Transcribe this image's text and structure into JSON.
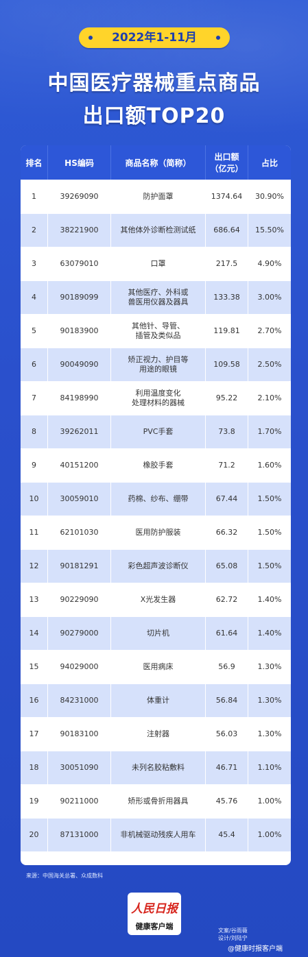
{
  "header": {
    "date_label": "2022年1-11月",
    "title_line1": "中国医疗器械重点商品",
    "title_line2": "出口额TOP20"
  },
  "table": {
    "columns": [
      "排名",
      "HS编码",
      "商品名称（简称）",
      "出口额\n（亿元）",
      "占比"
    ],
    "rows": [
      {
        "rank": "1",
        "code": "39269090",
        "name": "防护面罩",
        "amount": "1374.64",
        "share": "30.90%"
      },
      {
        "rank": "2",
        "code": "38221900",
        "name": "其他体外诊断检测试纸",
        "amount": "686.64",
        "share": "15.50%"
      },
      {
        "rank": "3",
        "code": "63079010",
        "name": "口罩",
        "amount": "217.5",
        "share": "4.90%"
      },
      {
        "rank": "4",
        "code": "90189099",
        "name": "其他医疗、外科或\n兽医用仪器及器具",
        "amount": "133.38",
        "share": "3.00%"
      },
      {
        "rank": "5",
        "code": "90183900",
        "name": "其他针、导管、\n插管及类似品",
        "amount": "119.81",
        "share": "2.70%"
      },
      {
        "rank": "6",
        "code": "90049090",
        "name": "矫正视力、护目等\n用途的眼镜",
        "amount": "109.58",
        "share": "2.50%"
      },
      {
        "rank": "7",
        "code": "84198990",
        "name": "利用温度变化\n处理材料的器械",
        "amount": "95.22",
        "share": "2.10%"
      },
      {
        "rank": "8",
        "code": "39262011",
        "name": "PVC手套",
        "amount": "73.8",
        "share": "1.70%"
      },
      {
        "rank": "9",
        "code": "40151200",
        "name": "橡胶手套",
        "amount": "71.2",
        "share": "1.60%"
      },
      {
        "rank": "10",
        "code": "30059010",
        "name": "药棉、纱布、绷带",
        "amount": "67.44",
        "share": "1.50%"
      },
      {
        "rank": "11",
        "code": "62101030",
        "name": "医用防护服装",
        "amount": "66.32",
        "share": "1.50%"
      },
      {
        "rank": "12",
        "code": "90181291",
        "name": "彩色超声波诊断仪",
        "amount": "65.08",
        "share": "1.50%"
      },
      {
        "rank": "13",
        "code": "90229090",
        "name": "X光发生器",
        "amount": "62.72",
        "share": "1.40%"
      },
      {
        "rank": "14",
        "code": "90279000",
        "name": "切片机",
        "amount": "61.64",
        "share": "1.40%"
      },
      {
        "rank": "15",
        "code": "94029000",
        "name": "医用病床",
        "amount": "56.9",
        "share": "1.30%"
      },
      {
        "rank": "16",
        "code": "84231000",
        "name": "体重计",
        "amount": "56.84",
        "share": "1.30%"
      },
      {
        "rank": "17",
        "code": "90183100",
        "name": "注射器",
        "amount": "56.03",
        "share": "1.30%"
      },
      {
        "rank": "18",
        "code": "30051090",
        "name": "未列名胶粘敷料",
        "amount": "46.71",
        "share": "1.10%"
      },
      {
        "rank": "19",
        "code": "90211000",
        "name": "矫形或骨折用器具",
        "amount": "45.76",
        "share": "1.00%"
      },
      {
        "rank": "20",
        "code": "87131000",
        "name": "非机械驱动残疾人用车",
        "amount": "45.4",
        "share": "1.00%"
      }
    ]
  },
  "footer": {
    "source": "来源：中国海关总署、众成数科",
    "logo_main": "人民日报",
    "logo_sub": "健康客户端",
    "credit_1": "文案/谷雨薇",
    "credit_2": "设计/刘陆宁",
    "watermark": "@健康时报客户端"
  },
  "colors": {
    "background": "#2a50cc",
    "header_row": "#2d57d8",
    "stripe": "#d6e1fb",
    "pill": "#ffd42a"
  }
}
